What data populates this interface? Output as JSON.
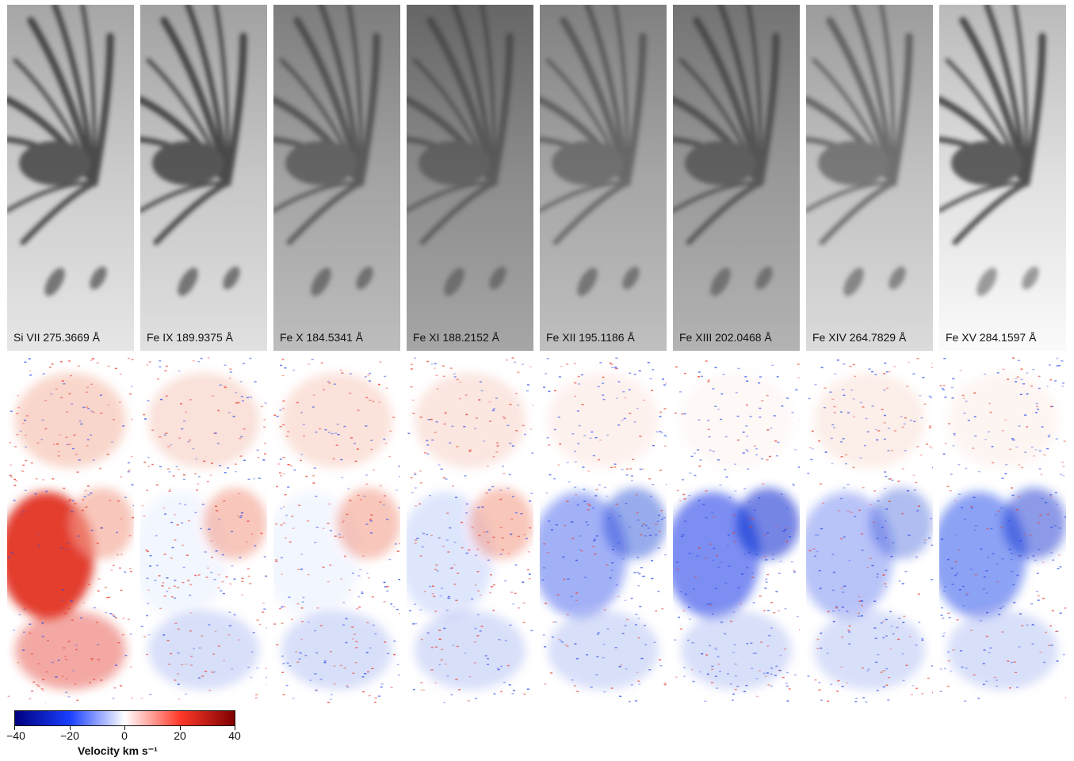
{
  "panels": [
    {
      "label": "Si VII 275.3669 Å",
      "bright": 0.9,
      "dark": 0.75,
      "rings": 0.25,
      "cbias": -0.3
    },
    {
      "label": "Fe IX 189.9375 Å",
      "bright": 0.88,
      "dark": 0.75,
      "rings": 0.25,
      "cbias": 0.0
    },
    {
      "label": "Fe X 184.5341 Å",
      "bright": 0.74,
      "dark": 0.55,
      "rings": 0.2,
      "cbias": 0.05
    },
    {
      "label": "Fe XI 188.2152 Å",
      "bright": 0.65,
      "dark": 0.45,
      "rings": 0.15,
      "cbias": 0.15
    },
    {
      "label": "Fe XII 195.1186 Å",
      "bright": 0.75,
      "dark": 0.45,
      "rings": 0.15,
      "cbias": 0.45
    },
    {
      "label": "Fe XIII 202.0468 Å",
      "bright": 0.7,
      "dark": 0.55,
      "rings": 0.15,
      "cbias": 0.65
    },
    {
      "label": "Fe XIV 264.7829 Å",
      "bright": 0.86,
      "dark": 0.5,
      "rings": 0.1,
      "cbias": 0.35
    },
    {
      "label": "Fe XV 284.1597 Å",
      "bright": 0.98,
      "dark": 0.75,
      "rings": 0.05,
      "cbias": 0.55
    }
  ],
  "colorbar": {
    "title": "Velocity km s⁻¹",
    "min": -40,
    "max": 40,
    "ticks": [
      "−40",
      "−20",
      "0",
      "20",
      "40"
    ],
    "colors": [
      "#00007f",
      "#1a3fff",
      "#ffffff",
      "#ff3a2a",
      "#7f0000"
    ]
  }
}
